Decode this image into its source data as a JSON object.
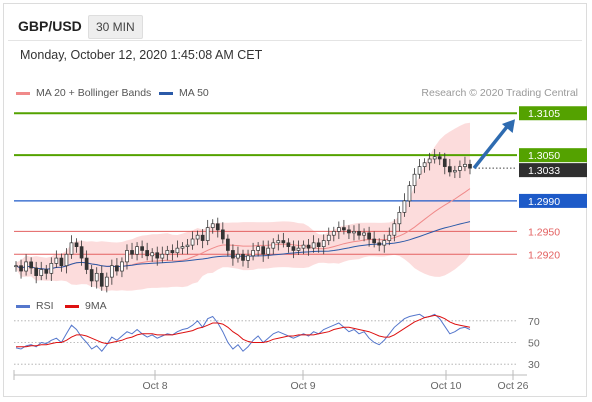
{
  "header": {
    "symbol": "GBP/USD",
    "timeframe": "30 MIN",
    "datetime": "Monday, October 12, 2020 1:45:08 AM CET"
  },
  "legend_top": [
    {
      "label": "MA 20 + Bollinger Bands",
      "color": "#f08a8a"
    },
    {
      "label": "MA 50",
      "color": "#2b5aa8"
    }
  ],
  "credit": "Research © 2020 Trading Central",
  "legend_bottom": [
    {
      "label": "RSI",
      "color": "#5577cc"
    },
    {
      "label": "9MA",
      "color": "#dd1111"
    }
  ],
  "colors": {
    "green": "#54a200",
    "blue": "#1d5ac8",
    "red": "#e36060",
    "dark": "#2f2f2f",
    "candle": "#333333",
    "arrow": "#2e6bb0"
  },
  "chart_data": [
    {
      "type": "line",
      "title": "GBP/USD 30 MIN",
      "x_ticks": [
        "Oct 8",
        "Oct 9",
        "Oct 10",
        "Oct 26"
      ],
      "ylim": [
        1.286,
        1.3125
      ],
      "levels": [
        {
          "value": 1.3105,
          "label": "1.3105",
          "style": "green-line",
          "badge": true
        },
        {
          "value": 1.305,
          "label": "1.3050",
          "style": "green-line",
          "badge": true
        },
        {
          "value": 1.3033,
          "label": "1.3033",
          "style": "current-price",
          "badge": true
        },
        {
          "value": 1.299,
          "label": "1.2990",
          "style": "blue-line",
          "badge": true
        },
        {
          "value": 1.295,
          "label": "1.2950",
          "style": "red-line",
          "badge": false
        },
        {
          "value": 1.292,
          "label": "1.2920",
          "style": "red-line",
          "badge": false
        }
      ],
      "closes": [
        1.2905,
        1.2898,
        1.291,
        1.2902,
        1.2892,
        1.29,
        1.2895,
        1.2908,
        1.2915,
        1.2905,
        1.292,
        1.2935,
        1.293,
        1.2915,
        1.29,
        1.2885,
        1.2895,
        1.2878,
        1.289,
        1.2905,
        1.2898,
        1.291,
        1.2925,
        1.292,
        1.293,
        1.2925,
        1.2918,
        1.2922,
        1.2915,
        1.292,
        1.2925,
        1.2922,
        1.2928,
        1.293,
        1.2932,
        1.294,
        1.2945,
        1.2938,
        1.2955,
        1.296,
        1.2952,
        1.294,
        1.2925,
        1.2915,
        1.292,
        1.2912,
        1.2918,
        1.2925,
        1.293,
        1.292,
        1.2928,
        1.2935,
        1.2938,
        1.2935,
        1.293,
        1.2925,
        1.2928,
        1.2932,
        1.2928,
        1.2935,
        1.293,
        1.2938,
        1.2945,
        1.295,
        1.2955,
        1.2952,
        1.2948,
        1.295,
        1.2945,
        1.2948,
        1.294,
        1.2935,
        1.2932,
        1.2938,
        1.2945,
        1.296,
        1.2975,
        1.299,
        1.301,
        1.3025,
        1.3035,
        1.304,
        1.3045,
        1.3048,
        1.3045,
        1.3035,
        1.3028,
        1.303,
        1.3035,
        1.3038,
        1.3033
      ],
      "series": [
        {
          "name": "MA 20",
          "color": "#f08a8a"
        },
        {
          "name": "MA 50",
          "color": "#2b5aa8"
        }
      ],
      "forecast_arrow": {
        "from": 1.3033,
        "to": 1.3105
      }
    },
    {
      "type": "line",
      "ylim": [
        20,
        80
      ],
      "y_ticks": [
        70,
        50,
        30
      ],
      "series": [
        {
          "name": "RSI",
          "color": "#5577cc",
          "values": [
            45,
            44,
            47,
            48,
            46,
            50,
            49,
            52,
            54,
            50,
            58,
            66,
            62,
            55,
            50,
            44,
            47,
            42,
            48,
            55,
            52,
            56,
            60,
            58,
            62,
            58,
            55,
            57,
            54,
            56,
            58,
            57,
            60,
            62,
            63,
            66,
            70,
            64,
            72,
            74,
            68,
            60,
            50,
            44,
            48,
            42,
            46,
            52,
            56,
            50,
            54,
            58,
            60,
            58,
            56,
            54,
            56,
            58,
            56,
            60,
            58,
            62,
            64,
            66,
            68,
            64,
            60,
            62,
            58,
            60,
            54,
            50,
            48,
            52,
            58,
            64,
            68,
            72,
            74,
            75,
            76,
            73,
            74,
            76,
            72,
            65,
            58,
            60,
            63,
            64,
            62
          ]
        },
        {
          "name": "9MA",
          "color": "#dd1111",
          "values": [
            46,
            46,
            46,
            47,
            47,
            48,
            48,
            49,
            50,
            50,
            52,
            55,
            57,
            57,
            56,
            54,
            52,
            50,
            49,
            50,
            51,
            52,
            54,
            55,
            57,
            58,
            58,
            58,
            57,
            57,
            57,
            57,
            58,
            59,
            60,
            61,
            63,
            64,
            66,
            68,
            68,
            67,
            64,
            60,
            57,
            53,
            51,
            50,
            50,
            50,
            51,
            53,
            54,
            55,
            56,
            56,
            57,
            57,
            57,
            57,
            58,
            59,
            60,
            62,
            63,
            64,
            64,
            63,
            62,
            61,
            60,
            58,
            56,
            55,
            55,
            57,
            60,
            63,
            66,
            69,
            71,
            73,
            74,
            75,
            74,
            72,
            69,
            67,
            66,
            65,
            64
          ]
        }
      ]
    }
  ]
}
